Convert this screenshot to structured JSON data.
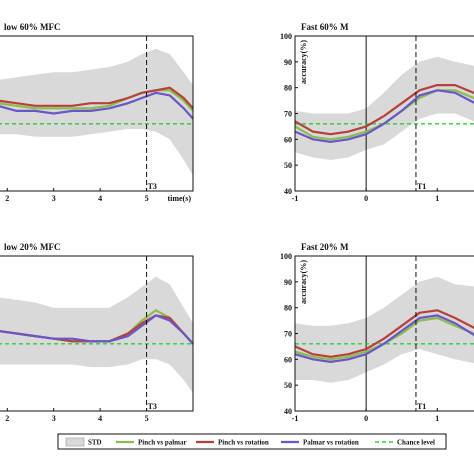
{
  "chart_data": [
    {
      "type": "line",
      "title": "low 60% MFC",
      "xlabel": "time(s)",
      "ylabel": "",
      "xlim": [
        1.8,
        6.0
      ],
      "ylim": [
        40,
        100
      ],
      "x_ticks": [
        "2",
        "3",
        "4",
        "5"
      ],
      "y_ticks": [],
      "marker": {
        "x": 5.0,
        "label": "T3"
      },
      "chance_level": 66,
      "band": {
        "name": "STD",
        "x": [
          1.8,
          2.2,
          2.6,
          3.0,
          3.4,
          3.8,
          4.2,
          4.6,
          4.9,
          5.2,
          5.5,
          5.8,
          6.0
        ],
        "upper": [
          83,
          84,
          85,
          86,
          86,
          87,
          88,
          90,
          93,
          95,
          93,
          86,
          81
        ],
        "lower": [
          62,
          62,
          61,
          61,
          61,
          62,
          63,
          64,
          64,
          63,
          60,
          52,
          46
        ]
      },
      "series": [
        {
          "name": "Pinch vs palmar",
          "x": [
            1.8,
            2.2,
            2.6,
            3.0,
            3.4,
            3.8,
            4.2,
            4.6,
            4.9,
            5.2,
            5.5,
            5.8,
            6.0
          ],
          "values": [
            74,
            73,
            72,
            72,
            72,
            72,
            73,
            76,
            78,
            79,
            79,
            75,
            71
          ]
        },
        {
          "name": "Pinch vs rotation",
          "x": [
            1.8,
            2.2,
            2.6,
            3.0,
            3.4,
            3.8,
            4.2,
            4.6,
            4.9,
            5.2,
            5.5,
            5.8,
            6.0
          ],
          "values": [
            75,
            74,
            73,
            73,
            73,
            74,
            74,
            76,
            78,
            79,
            80,
            76,
            72
          ]
        },
        {
          "name": "Palmar vs rotation",
          "x": [
            1.8,
            2.2,
            2.6,
            3.0,
            3.4,
            3.8,
            4.2,
            4.6,
            4.9,
            5.2,
            5.5,
            5.8,
            6.0
          ],
          "values": [
            73,
            71,
            71,
            70,
            71,
            71,
            72,
            74,
            76,
            78,
            77,
            72,
            68
          ]
        }
      ]
    },
    {
      "type": "line",
      "title": "Fast 60% M",
      "xlabel": "",
      "ylabel": "accuracy(%)",
      "xlim": [
        -1,
        1.6
      ],
      "ylim": [
        40,
        100
      ],
      "x_ticks": [
        "-1",
        "0",
        "1"
      ],
      "y_ticks": [
        "40",
        "50",
        "60",
        "70",
        "80",
        "90",
        "100"
      ],
      "marker": {
        "x": 0.7,
        "label": "T1"
      },
      "chance_level": 66,
      "band": {
        "name": "STD",
        "x": [
          -1,
          -0.75,
          -0.5,
          -0.25,
          0,
          0.25,
          0.5,
          0.75,
          1.0,
          1.25,
          1.6
        ],
        "upper": [
          71,
          70,
          70,
          70,
          72,
          78,
          85,
          90,
          92,
          90,
          88
        ],
        "lower": [
          55,
          53,
          52,
          53,
          56,
          58,
          63,
          68,
          70,
          70,
          66
        ]
      },
      "series": [
        {
          "name": "Pinch vs palmar",
          "x": [
            -1,
            -0.75,
            -0.5,
            -0.25,
            0,
            0.25,
            0.5,
            0.75,
            1.0,
            1.25,
            1.6
          ],
          "values": [
            65,
            61,
            60,
            61,
            63,
            66,
            71,
            76,
            79,
            79,
            75
          ]
        },
        {
          "name": "Pinch vs rotation",
          "x": [
            -1,
            -0.75,
            -0.5,
            -0.25,
            0,
            0.25,
            0.5,
            0.75,
            1.0,
            1.25,
            1.6
          ],
          "values": [
            67,
            63,
            62,
            63,
            65,
            69,
            74,
            79,
            81,
            81,
            77
          ]
        },
        {
          "name": "Palmar vs rotation",
          "x": [
            -1,
            -0.75,
            -0.5,
            -0.25,
            0,
            0.25,
            0.5,
            0.75,
            1.0,
            1.25,
            1.6
          ],
          "values": [
            63,
            60,
            59,
            60,
            62,
            66,
            71,
            77,
            79,
            78,
            73
          ]
        }
      ]
    },
    {
      "type": "line",
      "title": "low 20% MFC",
      "xlabel": "",
      "ylabel": "",
      "xlim": [
        1.8,
        6.0
      ],
      "ylim": [
        40,
        100
      ],
      "x_ticks": [
        "2",
        "3",
        "4",
        "5"
      ],
      "y_ticks": [],
      "marker": {
        "x": 5.0,
        "label": "T3"
      },
      "chance_level": 66,
      "band": {
        "name": "STD",
        "x": [
          1.8,
          2.2,
          2.6,
          3.0,
          3.4,
          3.8,
          4.2,
          4.6,
          4.9,
          5.2,
          5.5,
          5.8,
          6.0
        ],
        "upper": [
          84,
          83,
          82,
          80,
          80,
          80,
          80,
          84,
          88,
          92,
          89,
          80,
          74
        ],
        "lower": [
          58,
          58,
          58,
          58,
          58,
          57,
          57,
          58,
          60,
          60,
          58,
          52,
          47
        ]
      },
      "series": [
        {
          "name": "Pinch vs palmar",
          "x": [
            1.8,
            2.2,
            2.6,
            3.0,
            3.4,
            3.8,
            4.2,
            4.6,
            4.9,
            5.2,
            5.5,
            5.8,
            6.0
          ],
          "values": [
            71,
            70,
            69,
            68,
            67,
            67,
            67,
            70,
            75,
            79,
            76,
            70,
            66
          ]
        },
        {
          "name": "Pinch vs rotation",
          "x": [
            1.8,
            2.2,
            2.6,
            3.0,
            3.4,
            3.8,
            4.2,
            4.6,
            4.9,
            5.2,
            5.5,
            5.8,
            6.0
          ],
          "values": [
            71,
            70,
            69,
            68,
            67,
            67,
            67,
            70,
            74,
            77,
            76,
            70,
            66
          ]
        },
        {
          "name": "Palmar vs rotation",
          "x": [
            1.8,
            2.2,
            2.6,
            3.0,
            3.4,
            3.8,
            4.2,
            4.6,
            4.9,
            5.2,
            5.5,
            5.8,
            6.0
          ],
          "values": [
            71,
            70,
            69,
            68,
            68,
            67,
            67,
            69,
            73,
            77,
            75,
            70,
            66
          ]
        }
      ]
    },
    {
      "type": "line",
      "title": "Fast 20% M",
      "xlabel": "",
      "ylabel": "accuracy(%)",
      "xlim": [
        -1,
        1.6
      ],
      "ylim": [
        40,
        100
      ],
      "x_ticks": [
        "-1",
        "0",
        "1"
      ],
      "y_ticks": [
        "40",
        "50",
        "60",
        "70",
        "80",
        "90",
        "100"
      ],
      "marker": {
        "x": 0.7,
        "label": "T1"
      },
      "chance_level": 66,
      "band": {
        "name": "STD",
        "x": [
          -1,
          -0.75,
          -0.5,
          -0.25,
          0,
          0.25,
          0.5,
          0.75,
          1.0,
          1.25,
          1.6
        ],
        "upper": [
          74,
          73,
          73,
          74,
          76,
          80,
          85,
          90,
          92,
          89,
          88
        ],
        "lower": [
          52,
          52,
          51,
          52,
          55,
          58,
          62,
          64,
          62,
          60,
          58
        ]
      },
      "series": [
        {
          "name": "Pinch vs palmar",
          "x": [
            -1,
            -0.75,
            -0.5,
            -0.25,
            0,
            0.25,
            0.5,
            0.75,
            1.0,
            1.25,
            1.6
          ],
          "values": [
            63,
            61,
            60,
            61,
            63,
            66,
            70,
            75,
            76,
            73,
            69
          ]
        },
        {
          "name": "Pinch vs rotation",
          "x": [
            -1,
            -0.75,
            -0.5,
            -0.25,
            0,
            0.25,
            0.5,
            0.75,
            1.0,
            1.25,
            1.6
          ],
          "values": [
            65,
            62,
            61,
            62,
            64,
            68,
            73,
            78,
            79,
            76,
            71
          ]
        },
        {
          "name": "Palmar vs rotation",
          "x": [
            -1,
            -0.75,
            -0.5,
            -0.25,
            0,
            0.25,
            0.5,
            0.75,
            1.0,
            1.25,
            1.6
          ],
          "values": [
            62,
            60,
            59,
            60,
            62,
            66,
            71,
            76,
            77,
            74,
            68
          ]
        }
      ]
    }
  ],
  "colors": {
    "band": "#d9d9d9",
    "Pinch vs palmar": "#8bbd4e",
    "Pinch vs rotation": "#b5413a",
    "Palmar vs rotation": "#6a56c9",
    "chance": "#2ecc40"
  },
  "legend": {
    "items": [
      {
        "label": "STD",
        "kind": "band"
      },
      {
        "label": "Pinch vs palmar",
        "kind": "Pinch vs palmar"
      },
      {
        "label": "Pinch vs rotation",
        "kind": "Pinch vs rotation"
      },
      {
        "label": "Palmar vs rotation",
        "kind": "Palmar vs rotation"
      },
      {
        "label": "Chance level",
        "kind": "chance"
      }
    ]
  }
}
